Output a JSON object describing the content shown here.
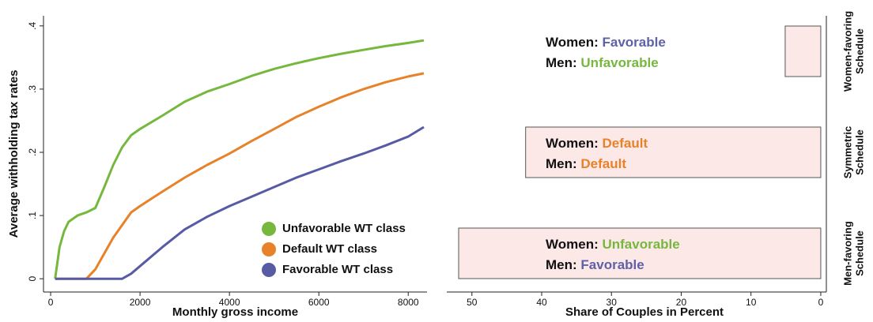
{
  "chart_data": [
    {
      "type": "line",
      "x": [
        100,
        200,
        300,
        400,
        600,
        800,
        1000,
        1200,
        1400,
        1600,
        1800,
        2000,
        2500,
        3000,
        3500,
        4000,
        4500,
        5000,
        5500,
        6000,
        6500,
        7000,
        7500,
        8000,
        8350
      ],
      "series": [
        {
          "name": "Unfavorable WT class",
          "color": "#76b83e",
          "values": [
            0,
            0.05,
            0.075,
            0.09,
            0.1,
            0.105,
            0.112,
            0.145,
            0.18,
            0.208,
            0.227,
            0.237,
            0.258,
            0.28,
            0.296,
            0.308,
            0.321,
            0.332,
            0.341,
            0.349,
            0.356,
            0.362,
            0.368,
            0.373,
            0.377
          ]
        },
        {
          "name": "Default WT class",
          "color": "#e8822a",
          "values": [
            0,
            0,
            0,
            0,
            0,
            0,
            0.015,
            0.04,
            0.065,
            0.085,
            0.105,
            0.115,
            0.138,
            0.16,
            0.18,
            0.198,
            0.218,
            0.237,
            0.256,
            0.272,
            0.287,
            0.3,
            0.311,
            0.32,
            0.325
          ]
        },
        {
          "name": "Favorable WT class",
          "color": "#575ba3",
          "values": [
            0,
            0,
            0,
            0,
            0,
            0,
            0,
            0,
            0,
            0,
            0.008,
            0.02,
            0.05,
            0.078,
            0.098,
            0.115,
            0.13,
            0.145,
            0.16,
            0.173,
            0.186,
            0.198,
            0.211,
            0.225,
            0.24
          ]
        }
      ],
      "xlabel": "Monthly gross income",
      "ylabel": "Average withholding tax rates",
      "xlim": [
        -160,
        8420
      ],
      "xticks": [
        0,
        2000,
        4000,
        6000,
        8000
      ],
      "ylim": [
        -0.021,
        0.416
      ],
      "yticks": [
        0,
        {
          "value": 0.1,
          "label": ".1"
        },
        {
          "value": 0.2,
          "label": ".2"
        },
        {
          "value": 0.3,
          "label": ".3"
        },
        {
          "value": 0.4,
          "label": ".4"
        }
      ]
    },
    {
      "type": "hbar",
      "categories": [
        "Women-favoring Schedule",
        "Symmetric Schedule",
        "Men-favoring Schedule"
      ],
      "values": [
        5.1,
        42.3,
        51.9
      ],
      "color": "#fde8e8",
      "labels": [
        [
          [
            "Women:",
            "Favorable"
          ],
          [
            "Men:",
            "Unfavorable"
          ]
        ],
        [
          [
            "Women:",
            "Default"
          ],
          [
            "Men:",
            "Default"
          ]
        ],
        [
          [
            "Women:",
            "Unfavorable"
          ],
          [
            "Men:",
            "Favorable"
          ]
        ]
      ],
      "label_colors": [
        [
          "#5f61a8",
          "#76b83e"
        ],
        [
          "#e8822a",
          "#e8822a"
        ],
        [
          "#76b83e",
          "#5f61a8"
        ]
      ],
      "xlabel": "Share of Couples in Percent",
      "xlim": [
        53.6,
        -0.8
      ],
      "xticks": [
        50,
        40,
        30,
        20,
        10,
        0
      ]
    }
  ]
}
